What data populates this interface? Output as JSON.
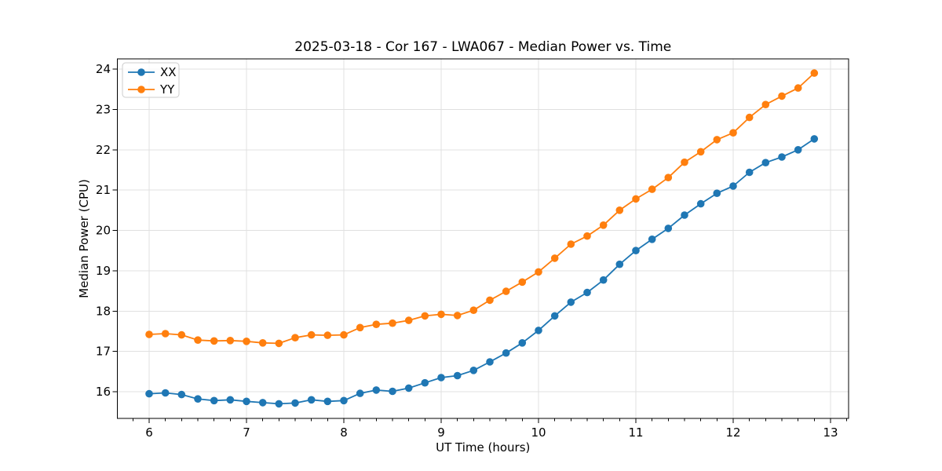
{
  "chart_data": {
    "type": "line",
    "title": "2025-03-18 - Cor 167 - LWA067 - Median Power vs. Time",
    "xlabel": "UT Time (hours)",
    "ylabel": "Median Power (CPU)",
    "xlim": [
      5.66,
      13.18
    ],
    "ylim": [
      15.33,
      24.26
    ],
    "xticks": [
      6,
      7,
      8,
      9,
      10,
      11,
      12,
      13
    ],
    "yticks": [
      16,
      17,
      18,
      19,
      20,
      21,
      22,
      23,
      24
    ],
    "minor_xtick_step": 0.1667,
    "grid": true,
    "grid_color": "#e0e0e0",
    "background_color": "#ffffff",
    "legend_position": "upper left",
    "x": [
      6.0,
      6.167,
      6.333,
      6.5,
      6.667,
      6.833,
      7.0,
      7.167,
      7.333,
      7.5,
      7.667,
      7.833,
      8.0,
      8.167,
      8.333,
      8.5,
      8.667,
      8.833,
      9.0,
      9.167,
      9.333,
      9.5,
      9.667,
      9.833,
      10.0,
      10.167,
      10.333,
      10.5,
      10.667,
      10.833,
      11.0,
      11.167,
      11.333,
      11.5,
      11.667,
      11.833,
      12.0,
      12.167,
      12.333,
      12.5,
      12.667,
      12.833
    ],
    "series": [
      {
        "name": "XX",
        "color": "#1f77b4",
        "marker": "circle",
        "values": [
          15.95,
          15.97,
          15.93,
          15.82,
          15.78,
          15.8,
          15.76,
          15.73,
          15.7,
          15.72,
          15.8,
          15.76,
          15.78,
          15.96,
          16.04,
          16.01,
          16.09,
          16.22,
          16.35,
          16.4,
          16.53,
          16.74,
          16.96,
          17.21,
          17.52,
          17.88,
          18.22,
          18.46,
          18.77,
          19.16,
          19.5,
          19.78,
          20.05,
          20.38,
          20.66,
          20.92,
          21.1,
          21.44,
          21.68,
          21.82,
          22.0,
          22.27
        ]
      },
      {
        "name": "YY",
        "color": "#ff7f0e",
        "marker": "circle",
        "values": [
          17.42,
          17.44,
          17.41,
          17.28,
          17.26,
          17.27,
          17.25,
          17.21,
          17.2,
          17.34,
          17.41,
          17.4,
          17.41,
          17.59,
          17.67,
          17.7,
          17.77,
          17.88,
          17.92,
          17.89,
          18.02,
          18.27,
          18.49,
          18.72,
          18.97,
          19.31,
          19.66,
          19.86,
          20.13,
          20.5,
          20.78,
          21.02,
          21.31,
          21.69,
          21.95,
          22.25,
          22.42,
          22.8,
          23.12,
          23.33,
          23.53,
          23.9
        ]
      }
    ]
  }
}
